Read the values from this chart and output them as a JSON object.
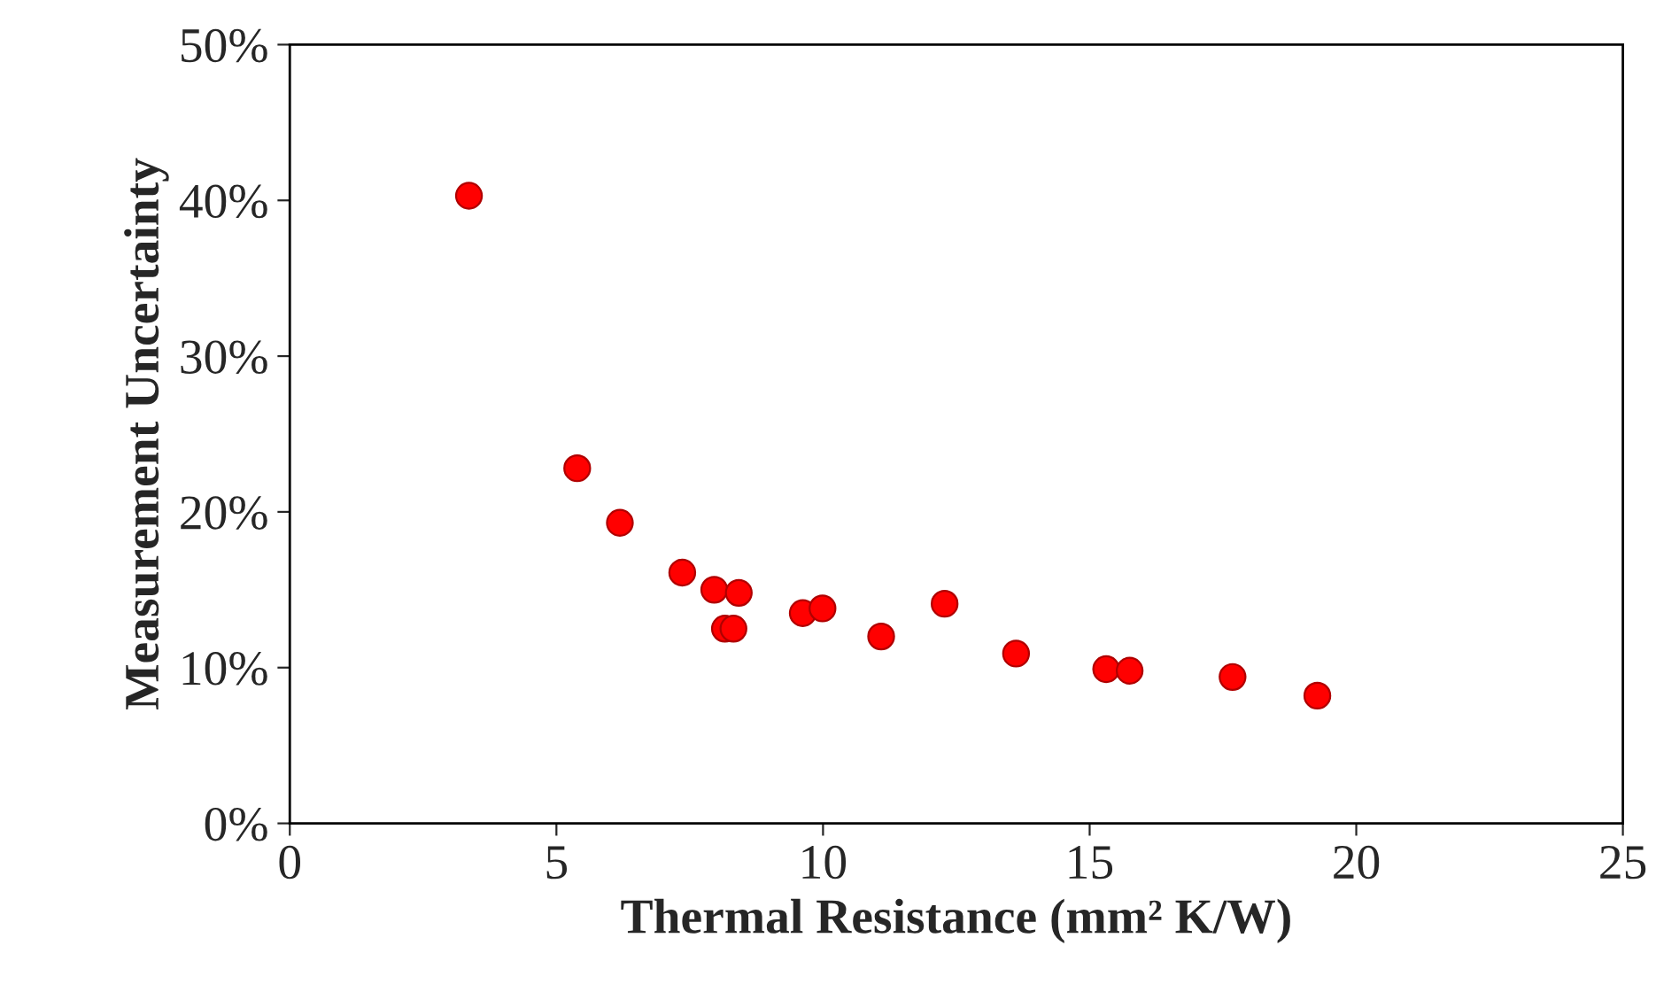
{
  "chart_data": {
    "type": "scatter",
    "xlabel": "Thermal Resistance (mm² K/W)",
    "ylabel": "Measurement Uncertainty",
    "x": [
      3.36,
      5.39,
      6.19,
      7.36,
      7.96,
      8.42,
      8.16,
      8.32,
      9.62,
      9.99,
      11.09,
      12.28,
      13.62,
      15.31,
      15.75,
      17.68,
      19.27
    ],
    "series": [
      {
        "color": "#ff0000",
        "values": [
          40.3,
          22.8,
          19.3,
          16.1,
          15.0,
          14.8,
          12.5,
          12.5,
          13.5,
          13.8,
          12.0,
          14.1,
          10.9,
          9.9,
          9.8,
          9.4,
          8.2
        ]
      }
    ],
    "xlim": [
      0,
      25
    ],
    "xticks": [
      0,
      5,
      10,
      15,
      20,
      25
    ],
    "ylim": [
      0,
      50
    ],
    "yticks": [
      {
        "value": 0,
        "label": "0%"
      },
      {
        "value": 10,
        "label": "10%"
      },
      {
        "value": 20,
        "label": "20%"
      },
      {
        "value": 30,
        "label": "30%"
      },
      {
        "value": 40,
        "label": "40%"
      },
      {
        "value": 50,
        "label": "50%"
      }
    ],
    "grid": false,
    "marker": "circle",
    "legend": false
  }
}
